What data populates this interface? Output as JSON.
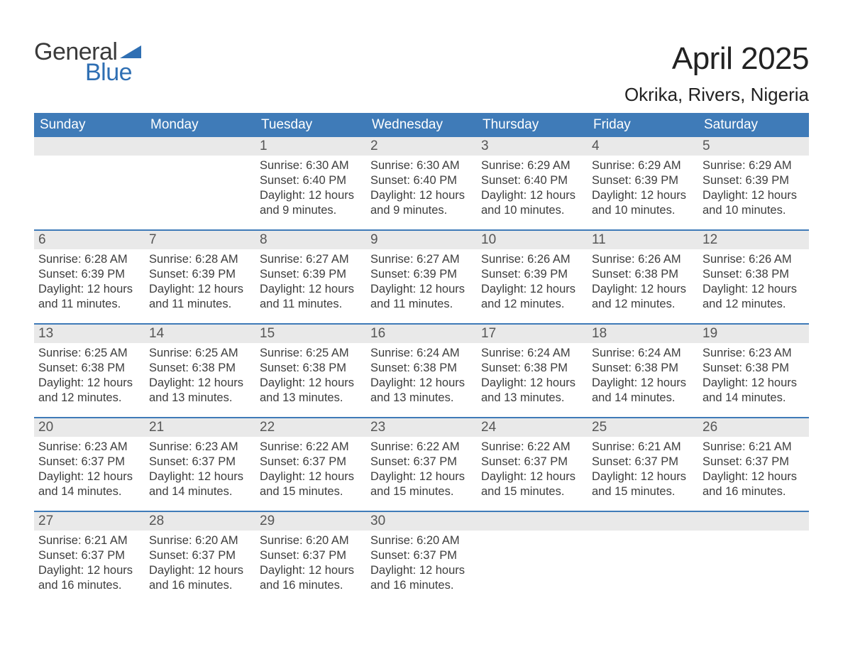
{
  "logo": {
    "general": "General",
    "blue": "Blue",
    "brand_color": "#2f6fb3",
    "text_color": "#3a3a3a"
  },
  "header": {
    "month_title": "April 2025",
    "location": "Okrika, Rivers, Nigeria"
  },
  "calendar": {
    "header_bg": "#3f7bb8",
    "header_text_color": "#ffffff",
    "week_border_color": "#3f7bb8",
    "daynum_bg": "#e9e9e9",
    "daynum_color": "#565656",
    "body_text_color": "#3d3d3d",
    "days_of_week": [
      "Sunday",
      "Monday",
      "Tuesday",
      "Wednesday",
      "Thursday",
      "Friday",
      "Saturday"
    ],
    "weeks": [
      [
        null,
        null,
        {
          "n": "1",
          "sunrise": "Sunrise: 6:30 AM",
          "sunset": "Sunset: 6:40 PM",
          "daylight": "Daylight: 12 hours and 9 minutes."
        },
        {
          "n": "2",
          "sunrise": "Sunrise: 6:30 AM",
          "sunset": "Sunset: 6:40 PM",
          "daylight": "Daylight: 12 hours and 9 minutes."
        },
        {
          "n": "3",
          "sunrise": "Sunrise: 6:29 AM",
          "sunset": "Sunset: 6:40 PM",
          "daylight": "Daylight: 12 hours and 10 minutes."
        },
        {
          "n": "4",
          "sunrise": "Sunrise: 6:29 AM",
          "sunset": "Sunset: 6:39 PM",
          "daylight": "Daylight: 12 hours and 10 minutes."
        },
        {
          "n": "5",
          "sunrise": "Sunrise: 6:29 AM",
          "sunset": "Sunset: 6:39 PM",
          "daylight": "Daylight: 12 hours and 10 minutes."
        }
      ],
      [
        {
          "n": "6",
          "sunrise": "Sunrise: 6:28 AM",
          "sunset": "Sunset: 6:39 PM",
          "daylight": "Daylight: 12 hours and 11 minutes."
        },
        {
          "n": "7",
          "sunrise": "Sunrise: 6:28 AM",
          "sunset": "Sunset: 6:39 PM",
          "daylight": "Daylight: 12 hours and 11 minutes."
        },
        {
          "n": "8",
          "sunrise": "Sunrise: 6:27 AM",
          "sunset": "Sunset: 6:39 PM",
          "daylight": "Daylight: 12 hours and 11 minutes."
        },
        {
          "n": "9",
          "sunrise": "Sunrise: 6:27 AM",
          "sunset": "Sunset: 6:39 PM",
          "daylight": "Daylight: 12 hours and 11 minutes."
        },
        {
          "n": "10",
          "sunrise": "Sunrise: 6:26 AM",
          "sunset": "Sunset: 6:39 PM",
          "daylight": "Daylight: 12 hours and 12 minutes."
        },
        {
          "n": "11",
          "sunrise": "Sunrise: 6:26 AM",
          "sunset": "Sunset: 6:38 PM",
          "daylight": "Daylight: 12 hours and 12 minutes."
        },
        {
          "n": "12",
          "sunrise": "Sunrise: 6:26 AM",
          "sunset": "Sunset: 6:38 PM",
          "daylight": "Daylight: 12 hours and 12 minutes."
        }
      ],
      [
        {
          "n": "13",
          "sunrise": "Sunrise: 6:25 AM",
          "sunset": "Sunset: 6:38 PM",
          "daylight": "Daylight: 12 hours and 12 minutes."
        },
        {
          "n": "14",
          "sunrise": "Sunrise: 6:25 AM",
          "sunset": "Sunset: 6:38 PM",
          "daylight": "Daylight: 12 hours and 13 minutes."
        },
        {
          "n": "15",
          "sunrise": "Sunrise: 6:25 AM",
          "sunset": "Sunset: 6:38 PM",
          "daylight": "Daylight: 12 hours and 13 minutes."
        },
        {
          "n": "16",
          "sunrise": "Sunrise: 6:24 AM",
          "sunset": "Sunset: 6:38 PM",
          "daylight": "Daylight: 12 hours and 13 minutes."
        },
        {
          "n": "17",
          "sunrise": "Sunrise: 6:24 AM",
          "sunset": "Sunset: 6:38 PM",
          "daylight": "Daylight: 12 hours and 13 minutes."
        },
        {
          "n": "18",
          "sunrise": "Sunrise: 6:24 AM",
          "sunset": "Sunset: 6:38 PM",
          "daylight": "Daylight: 12 hours and 14 minutes."
        },
        {
          "n": "19",
          "sunrise": "Sunrise: 6:23 AM",
          "sunset": "Sunset: 6:38 PM",
          "daylight": "Daylight: 12 hours and 14 minutes."
        }
      ],
      [
        {
          "n": "20",
          "sunrise": "Sunrise: 6:23 AM",
          "sunset": "Sunset: 6:37 PM",
          "daylight": "Daylight: 12 hours and 14 minutes."
        },
        {
          "n": "21",
          "sunrise": "Sunrise: 6:23 AM",
          "sunset": "Sunset: 6:37 PM",
          "daylight": "Daylight: 12 hours and 14 minutes."
        },
        {
          "n": "22",
          "sunrise": "Sunrise: 6:22 AM",
          "sunset": "Sunset: 6:37 PM",
          "daylight": "Daylight: 12 hours and 15 minutes."
        },
        {
          "n": "23",
          "sunrise": "Sunrise: 6:22 AM",
          "sunset": "Sunset: 6:37 PM",
          "daylight": "Daylight: 12 hours and 15 minutes."
        },
        {
          "n": "24",
          "sunrise": "Sunrise: 6:22 AM",
          "sunset": "Sunset: 6:37 PM",
          "daylight": "Daylight: 12 hours and 15 minutes."
        },
        {
          "n": "25",
          "sunrise": "Sunrise: 6:21 AM",
          "sunset": "Sunset: 6:37 PM",
          "daylight": "Daylight: 12 hours and 15 minutes."
        },
        {
          "n": "26",
          "sunrise": "Sunrise: 6:21 AM",
          "sunset": "Sunset: 6:37 PM",
          "daylight": "Daylight: 12 hours and 16 minutes."
        }
      ],
      [
        {
          "n": "27",
          "sunrise": "Sunrise: 6:21 AM",
          "sunset": "Sunset: 6:37 PM",
          "daylight": "Daylight: 12 hours and 16 minutes."
        },
        {
          "n": "28",
          "sunrise": "Sunrise: 6:20 AM",
          "sunset": "Sunset: 6:37 PM",
          "daylight": "Daylight: 12 hours and 16 minutes."
        },
        {
          "n": "29",
          "sunrise": "Sunrise: 6:20 AM",
          "sunset": "Sunset: 6:37 PM",
          "daylight": "Daylight: 12 hours and 16 minutes."
        },
        {
          "n": "30",
          "sunrise": "Sunrise: 6:20 AM",
          "sunset": "Sunset: 6:37 PM",
          "daylight": "Daylight: 12 hours and 16 minutes."
        },
        null,
        null,
        null
      ]
    ]
  }
}
